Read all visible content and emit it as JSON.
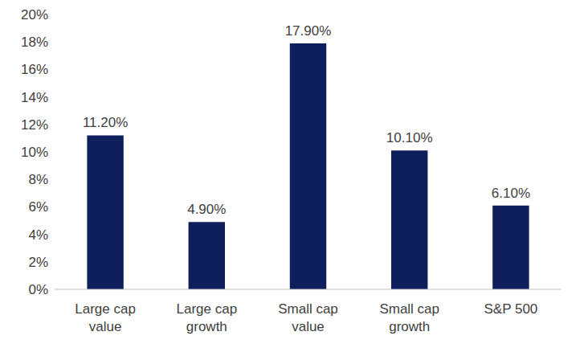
{
  "chart_data": {
    "type": "bar",
    "categories": [
      "Large cap value",
      "Large cap growth",
      "Small cap value",
      "Small cap growth",
      "S&P 500"
    ],
    "values": [
      11.2,
      4.9,
      17.9,
      10.1,
      6.1
    ],
    "value_labels": [
      "11.20%",
      "4.90%",
      "17.90%",
      "10.10%",
      "6.10%"
    ],
    "color": "#0f1f5c",
    "ylim": [
      0,
      20
    ],
    "yticks": [
      {
        "value": 0,
        "label": "0%"
      },
      {
        "value": 2,
        "label": "2%"
      },
      {
        "value": 4,
        "label": "4%"
      },
      {
        "value": 6,
        "label": "6%"
      },
      {
        "value": 8,
        "label": "8%"
      },
      {
        "value": 10,
        "label": "10%"
      },
      {
        "value": 12,
        "label": "12%"
      },
      {
        "value": 14,
        "label": "14%"
      },
      {
        "value": 16,
        "label": "16%"
      },
      {
        "value": 18,
        "label": "18%"
      },
      {
        "value": 20,
        "label": "20%"
      }
    ],
    "grid": false,
    "data_labels": true
  }
}
